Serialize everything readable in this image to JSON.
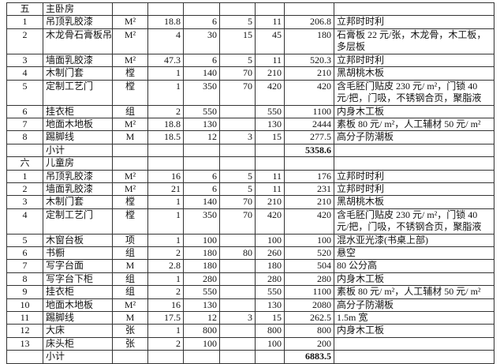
{
  "rows": [
    {
      "no": "五",
      "name": "主卧房",
      "unit": "",
      "qty": "",
      "c1": "",
      "c2": "",
      "price": "",
      "total": "",
      "note": ""
    },
    {
      "no": "1",
      "name": "吊顶乳胶漆",
      "unit": "M²",
      "qty": "18.8",
      "c1": "6",
      "c2": "5",
      "price": "11",
      "total": "206.8",
      "note": "立邦时时利"
    },
    {
      "no": "2",
      "name": "木龙骨石膏板吊",
      "unit": "M²",
      "qty": "4",
      "c1": "30",
      "c2": "15",
      "price": "45",
      "total": "180",
      "note": "石膏板 22 元/张，木龙骨，木工板，多层板",
      "tall": true
    },
    {
      "no": "3",
      "name": "墙面乳胶漆",
      "unit": "M²",
      "qty": "47.3",
      "c1": "6",
      "c2": "5",
      "price": "11",
      "total": "520.3",
      "note": "立邦时时利"
    },
    {
      "no": "4",
      "name": "木制门套",
      "unit": "樘",
      "qty": "1",
      "c1": "140",
      "c2": "70",
      "price": "210",
      "total": "210",
      "note": "黑胡桃木板"
    },
    {
      "no": "5",
      "name": "定制工艺门",
      "unit": "樘",
      "qty": "1",
      "c1": "350",
      "c2": "70",
      "price": "420",
      "total": "420",
      "note": "含毛胚门贴皮 230 元/ m²，门锁 40 元/把，门吸，不锈钢合页，聚脂液",
      "tall": true
    },
    {
      "no": "6",
      "name": "挂衣柜",
      "unit": "组",
      "qty": "2",
      "c1": "550",
      "c2": "",
      "price": "550",
      "total": "1100",
      "note": "内身木工板"
    },
    {
      "no": "7",
      "name": "地面木地板",
      "unit": "M²",
      "qty": "18.8",
      "c1": "130",
      "c2": "",
      "price": "130",
      "total": "2444",
      "note": "素板 80 元/ m²，人工辅材 50 元/ m²"
    },
    {
      "no": "8",
      "name": "踢脚线",
      "unit": "M",
      "qty": "18.5",
      "c1": "12",
      "c2": "3",
      "price": "15",
      "total": "277.5",
      "note": "高分子防潮板"
    },
    {
      "no": "",
      "name": "小计",
      "unit": "",
      "qty": "",
      "c1": "",
      "c2": "",
      "price": "",
      "total": "5358.6",
      "note": "",
      "subtotal": true
    },
    {
      "no": "六",
      "name": "儿童房",
      "unit": "",
      "qty": "",
      "c1": "",
      "c2": "",
      "price": "",
      "total": "",
      "note": ""
    },
    {
      "no": "1",
      "name": "吊顶乳胶漆",
      "unit": "M²",
      "qty": "16",
      "c1": "6",
      "c2": "5",
      "price": "11",
      "total": "176",
      "note": "立邦时时利"
    },
    {
      "no": "2",
      "name": "墙面乳胶漆",
      "unit": "M²",
      "qty": "21",
      "c1": "6",
      "c2": "5",
      "price": "11",
      "total": "231",
      "note": "立邦时时利"
    },
    {
      "no": "3",
      "name": "木制门套",
      "unit": "樘",
      "qty": "1",
      "c1": "140",
      "c2": "70",
      "price": "210",
      "total": "210",
      "note": "黑胡桃木板"
    },
    {
      "no": "4",
      "name": "定制工艺门",
      "unit": "樘",
      "qty": "1",
      "c1": "350",
      "c2": "70",
      "price": "420",
      "total": "420",
      "note": "含毛胚门贴皮 230 元/ m²，门锁 40 元/把，门吸，不锈钢合页，聚脂液",
      "tall": true
    },
    {
      "no": "5",
      "name": "木窗台板",
      "unit": "项",
      "qty": "1",
      "c1": "100",
      "c2": "",
      "price": "100",
      "total": "100",
      "note": "混水亚光漆(书桌上部)"
    },
    {
      "no": "6",
      "name": "书橱",
      "unit": "组",
      "qty": "2",
      "c1": "180",
      "c2": "80",
      "price": "260",
      "total": "520",
      "note": "悬空"
    },
    {
      "no": "7",
      "name": "写字台面",
      "unit": "M",
      "qty": "2.8",
      "c1": "180",
      "c2": "",
      "price": "180",
      "total": "504",
      "note": "80 公分高"
    },
    {
      "no": "8",
      "name": "写字台下柜",
      "unit": "组",
      "qty": "1",
      "c1": "280",
      "c2": "",
      "price": "280",
      "total": "280",
      "note": "内身木工板"
    },
    {
      "no": "9",
      "name": "挂衣柜",
      "unit": "组",
      "qty": "2",
      "c1": "550",
      "c2": "",
      "price": "550",
      "total": "1100",
      "note": "素板 80 元/ m²，人工辅材 50 元/ m²"
    },
    {
      "no": "10",
      "name": "地面木地板",
      "unit": "M²",
      "qty": "16",
      "c1": "130",
      "c2": "",
      "price": "130",
      "total": "2080",
      "note": "高分子防潮板"
    },
    {
      "no": "11",
      "name": "踢脚线",
      "unit": "M",
      "qty": "17.5",
      "c1": "12",
      "c2": "3",
      "price": "15",
      "total": "262.5",
      "note": "1.5m 宽"
    },
    {
      "no": "12",
      "name": "大床",
      "unit": "张",
      "qty": "1",
      "c1": "800",
      "c2": "",
      "price": "800",
      "total": "800",
      "note": "内身木工板"
    },
    {
      "no": "13",
      "name": "床头柜",
      "unit": "张",
      "qty": "2",
      "c1": "100",
      "c2": "",
      "price": "100",
      "total": "200",
      "note": ""
    },
    {
      "no": "",
      "name": "小计",
      "unit": "",
      "qty": "",
      "c1": "",
      "c2": "",
      "price": "",
      "total": "6883.5",
      "note": "",
      "subtotal": true
    }
  ]
}
